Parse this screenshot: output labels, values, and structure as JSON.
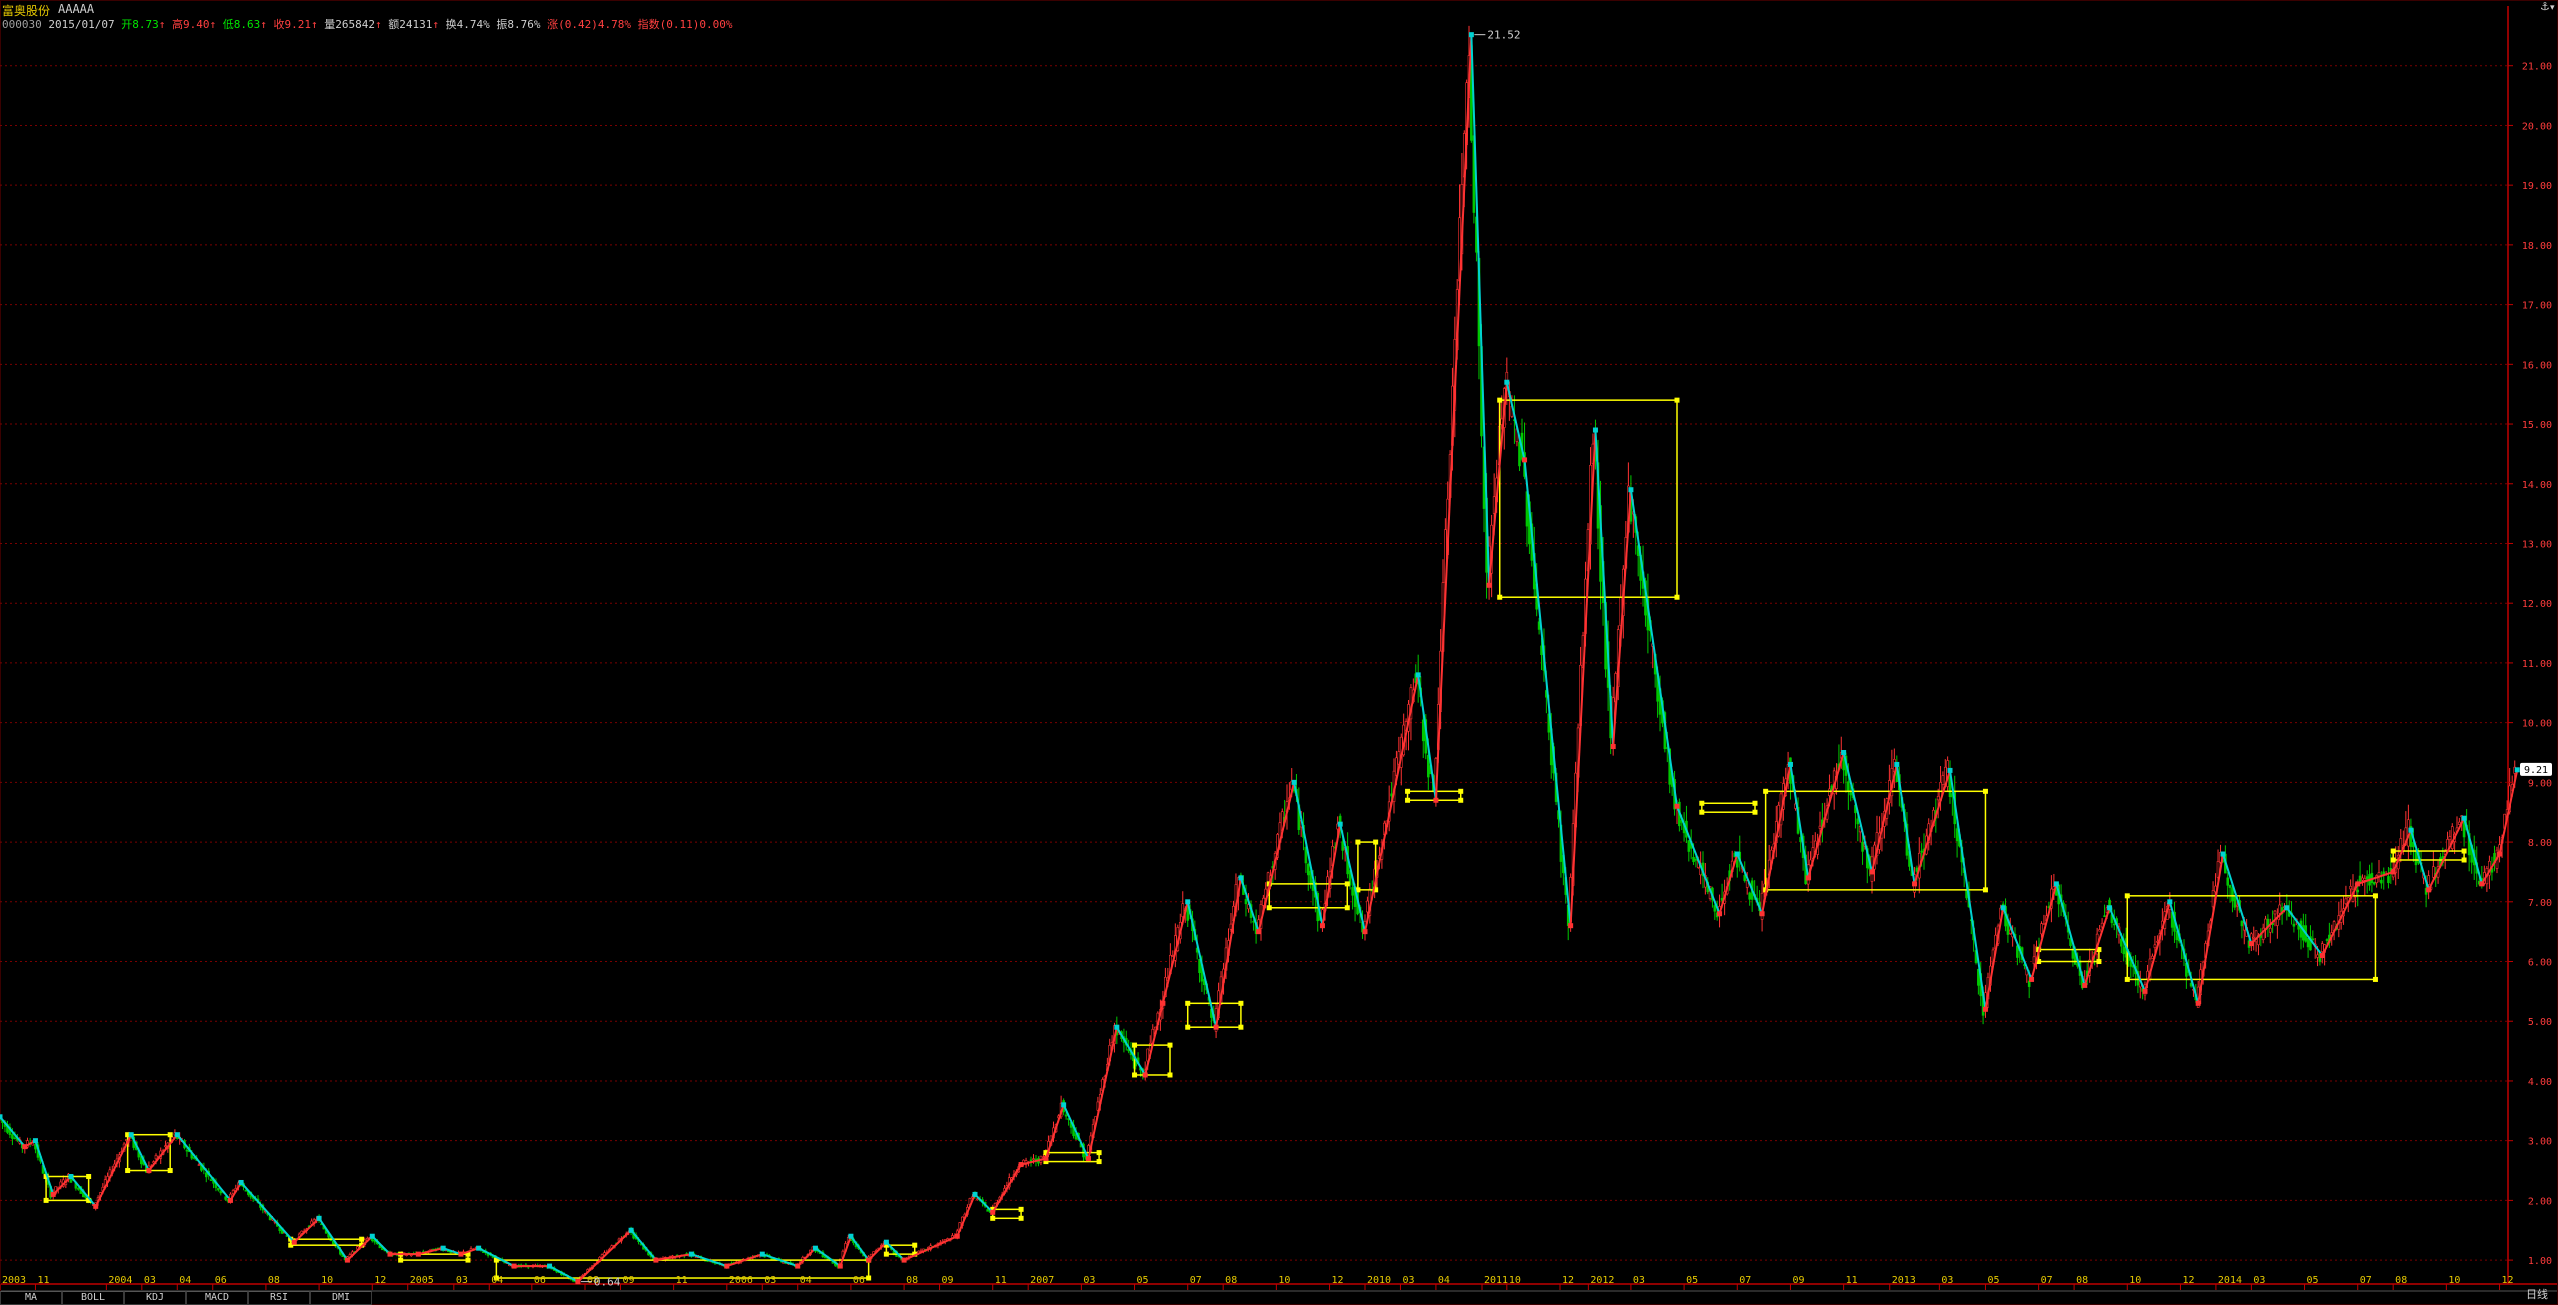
{
  "header": {
    "stock_name": "富奥股份",
    "stock_suffix": "AAAAA",
    "code": "000030",
    "date": "2015/01/07",
    "open_label": "开",
    "open_value": "8.73",
    "high_label": "高",
    "high_value": "9.40",
    "low_label": "低",
    "low_value": "8.63",
    "close_label": "收",
    "close_value": "9.21",
    "vol_label": "量",
    "vol_value": "265842",
    "amount_label": "额",
    "amount_value": "24131",
    "turnover_label": "换",
    "turnover_value": "4.74%",
    "amplitude_label": "振",
    "amplitude_value": "8.76%",
    "change_label": "涨",
    "change_value": "(0.42)4.78%",
    "index_label": "指数",
    "index_value": "(0.11)0.00%"
  },
  "tabs": [
    "MA",
    "BOLL",
    "KDJ",
    "MACD",
    "RSI",
    "DMI"
  ],
  "period_label": "日线",
  "colors": {
    "up": "#ff3232",
    "down": "#00d2d2",
    "box": "#ffff00",
    "grid": "#7a0000",
    "axis": "#c00000",
    "axis_text": "#ff3c3c",
    "date_text": "#e6c800",
    "price_tag": "#ffffff"
  },
  "chart_data": {
    "type": "line",
    "title": "富奥股份 AAAAA",
    "y_ticks": [
      "1.00",
      "2.00",
      "3.00",
      "4.00",
      "5.00",
      "6.00",
      "7.00",
      "8.00",
      "9.00",
      "10.00",
      "11.00",
      "12.00",
      "13.00",
      "14.00",
      "15.00",
      "16.00",
      "17.00",
      "18.00",
      "19.00",
      "20.00",
      "21.00"
    ],
    "ylim": [
      0.6,
      22.0
    ],
    "x_ticks": [
      {
        "x": 0.0,
        "label": "2003"
      },
      {
        "x": 1.0,
        "label": "11"
      },
      {
        "x": 3.0,
        "label": "2004"
      },
      {
        "x": 4.0,
        "label": "03"
      },
      {
        "x": 5.0,
        "label": "04"
      },
      {
        "x": 6.0,
        "label": "06"
      },
      {
        "x": 7.5,
        "label": "08"
      },
      {
        "x": 9.0,
        "label": "10"
      },
      {
        "x": 10.5,
        "label": "12"
      },
      {
        "x": 11.5,
        "label": "2005"
      },
      {
        "x": 12.8,
        "label": "03"
      },
      {
        "x": 13.8,
        "label": "04"
      },
      {
        "x": 15.0,
        "label": "06"
      },
      {
        "x": 16.5,
        "label": "08"
      },
      {
        "x": 17.5,
        "label": "09"
      },
      {
        "x": 19.0,
        "label": "11"
      },
      {
        "x": 20.5,
        "label": "2006"
      },
      {
        "x": 21.5,
        "label": "03"
      },
      {
        "x": 22.5,
        "label": "04"
      },
      {
        "x": 24.0,
        "label": "06"
      },
      {
        "x": 25.5,
        "label": "08"
      },
      {
        "x": 26.5,
        "label": "09"
      },
      {
        "x": 28.0,
        "label": "11"
      },
      {
        "x": 29.0,
        "label": "2007"
      },
      {
        "x": 30.5,
        "label": "03"
      },
      {
        "x": 32.0,
        "label": "05"
      },
      {
        "x": 33.5,
        "label": "07"
      },
      {
        "x": 34.5,
        "label": "08"
      },
      {
        "x": 36.0,
        "label": "10"
      },
      {
        "x": 37.5,
        "label": "12"
      },
      {
        "x": 38.5,
        "label": "2010"
      },
      {
        "x": 39.5,
        "label": "03"
      },
      {
        "x": 40.5,
        "label": "04"
      },
      {
        "x": 41.8,
        "label": "2011"
      },
      {
        "x": 42.5,
        "label": "10"
      },
      {
        "x": 44.0,
        "label": "12"
      },
      {
        "x": 44.8,
        "label": "2012"
      },
      {
        "x": 46.0,
        "label": "03"
      },
      {
        "x": 47.5,
        "label": "05"
      },
      {
        "x": 49.0,
        "label": "07"
      },
      {
        "x": 50.5,
        "label": "09"
      },
      {
        "x": 52.0,
        "label": "11"
      },
      {
        "x": 53.3,
        "label": "2013"
      },
      {
        "x": 54.7,
        "label": "03"
      },
      {
        "x": 56.0,
        "label": "05"
      },
      {
        "x": 57.5,
        "label": "07"
      },
      {
        "x": 58.5,
        "label": "08"
      },
      {
        "x": 60.0,
        "label": "10"
      },
      {
        "x": 61.5,
        "label": "12"
      },
      {
        "x": 62.5,
        "label": "2014"
      },
      {
        "x": 63.5,
        "label": "03"
      },
      {
        "x": 65.0,
        "label": "05"
      },
      {
        "x": 66.5,
        "label": "07"
      },
      {
        "x": 67.5,
        "label": "08"
      },
      {
        "x": 69.0,
        "label": "10"
      },
      {
        "x": 70.5,
        "label": "12"
      }
    ],
    "xlim": [
      0,
      71.5
    ],
    "pivots": [
      {
        "x": 0.0,
        "y": 3.4
      },
      {
        "x": 0.7,
        "y": 2.9
      },
      {
        "x": 1.0,
        "y": 3.0
      },
      {
        "x": 1.5,
        "y": 2.1
      },
      {
        "x": 2.0,
        "y": 2.4
      },
      {
        "x": 2.7,
        "y": 1.9
      },
      {
        "x": 3.7,
        "y": 3.1
      },
      {
        "x": 4.2,
        "y": 2.5
      },
      {
        "x": 5.0,
        "y": 3.1
      },
      {
        "x": 6.5,
        "y": 2.0
      },
      {
        "x": 6.8,
        "y": 2.3
      },
      {
        "x": 8.3,
        "y": 1.3
      },
      {
        "x": 9.0,
        "y": 1.7
      },
      {
        "x": 9.8,
        "y": 1.0
      },
      {
        "x": 10.5,
        "y": 1.4
      },
      {
        "x": 11.0,
        "y": 1.1
      },
      {
        "x": 11.8,
        "y": 1.1
      },
      {
        "x": 12.5,
        "y": 1.2
      },
      {
        "x": 13.0,
        "y": 1.1
      },
      {
        "x": 13.5,
        "y": 1.2
      },
      {
        "x": 14.5,
        "y": 0.9
      },
      {
        "x": 15.5,
        "y": 0.9
      },
      {
        "x": 16.3,
        "y": 0.64
      },
      {
        "x": 17.8,
        "y": 1.5
      },
      {
        "x": 18.5,
        "y": 1.0
      },
      {
        "x": 19.5,
        "y": 1.1
      },
      {
        "x": 20.5,
        "y": 0.9
      },
      {
        "x": 21.5,
        "y": 1.1
      },
      {
        "x": 22.5,
        "y": 0.9
      },
      {
        "x": 23.0,
        "y": 1.2
      },
      {
        "x": 23.7,
        "y": 0.9
      },
      {
        "x": 24.0,
        "y": 1.4
      },
      {
        "x": 24.5,
        "y": 1.0
      },
      {
        "x": 25.0,
        "y": 1.3
      },
      {
        "x": 25.5,
        "y": 1.0
      },
      {
        "x": 27.0,
        "y": 1.4
      },
      {
        "x": 27.5,
        "y": 2.1
      },
      {
        "x": 28.0,
        "y": 1.8
      },
      {
        "x": 28.8,
        "y": 2.6
      },
      {
        "x": 29.5,
        "y": 2.7
      },
      {
        "x": 30.0,
        "y": 3.6
      },
      {
        "x": 30.7,
        "y": 2.7
      },
      {
        "x": 31.5,
        "y": 4.9
      },
      {
        "x": 32.3,
        "y": 4.1
      },
      {
        "x": 32.8,
        "y": 5.3
      },
      {
        "x": 33.5,
        "y": 7.0
      },
      {
        "x": 34.3,
        "y": 4.9
      },
      {
        "x": 35.0,
        "y": 7.4
      },
      {
        "x": 35.5,
        "y": 6.5
      },
      {
        "x": 36.5,
        "y": 9.0
      },
      {
        "x": 37.3,
        "y": 6.6
      },
      {
        "x": 37.8,
        "y": 8.3
      },
      {
        "x": 38.5,
        "y": 6.5
      },
      {
        "x": 40.0,
        "y": 10.8
      },
      {
        "x": 40.5,
        "y": 8.7
      },
      {
        "x": 41.5,
        "y": 21.52
      },
      {
        "x": 42.0,
        "y": 12.3
      },
      {
        "x": 42.5,
        "y": 15.7
      },
      {
        "x": 43.0,
        "y": 14.4
      },
      {
        "x": 44.3,
        "y": 6.6
      },
      {
        "x": 45.0,
        "y": 14.9
      },
      {
        "x": 45.5,
        "y": 9.6
      },
      {
        "x": 46.0,
        "y": 13.9
      },
      {
        "x": 47.3,
        "y": 8.6
      },
      {
        "x": 48.5,
        "y": 6.8
      },
      {
        "x": 49.0,
        "y": 7.8
      },
      {
        "x": 49.7,
        "y": 6.8
      },
      {
        "x": 50.5,
        "y": 9.3
      },
      {
        "x": 51.0,
        "y": 7.4
      },
      {
        "x": 52.0,
        "y": 9.5
      },
      {
        "x": 52.8,
        "y": 7.5
      },
      {
        "x": 53.5,
        "y": 9.3
      },
      {
        "x": 54.0,
        "y": 7.3
      },
      {
        "x": 55.0,
        "y": 9.2
      },
      {
        "x": 56.0,
        "y": 5.2
      },
      {
        "x": 56.5,
        "y": 6.9
      },
      {
        "x": 57.3,
        "y": 5.7
      },
      {
        "x": 58.0,
        "y": 7.3
      },
      {
        "x": 58.8,
        "y": 5.6
      },
      {
        "x": 59.5,
        "y": 6.9
      },
      {
        "x": 60.5,
        "y": 5.5
      },
      {
        "x": 61.2,
        "y": 7.0
      },
      {
        "x": 62.0,
        "y": 5.3
      },
      {
        "x": 62.7,
        "y": 7.8
      },
      {
        "x": 63.5,
        "y": 6.3
      },
      {
        "x": 64.5,
        "y": 6.9
      },
      {
        "x": 65.5,
        "y": 6.1
      },
      {
        "x": 66.5,
        "y": 7.3
      },
      {
        "x": 67.5,
        "y": 7.5
      },
      {
        "x": 68.0,
        "y": 8.2
      },
      {
        "x": 68.5,
        "y": 7.2
      },
      {
        "x": 69.5,
        "y": 8.4
      },
      {
        "x": 70.0,
        "y": 7.3
      },
      {
        "x": 70.5,
        "y": 7.8
      },
      {
        "x": 71.0,
        "y": 9.21
      }
    ],
    "boxes": [
      {
        "x0": 1.3,
        "x1": 2.5,
        "y0": 2.0,
        "y1": 2.4
      },
      {
        "x0": 3.6,
        "x1": 4.8,
        "y0": 2.5,
        "y1": 3.1
      },
      {
        "x0": 8.2,
        "x1": 10.2,
        "y0": 1.25,
        "y1": 1.35
      },
      {
        "x0": 11.3,
        "x1": 13.2,
        "y0": 1.0,
        "y1": 1.1
      },
      {
        "x0": 14.0,
        "x1": 24.5,
        "y0": 0.7,
        "y1": 1.0
      },
      {
        "x0": 25.0,
        "x1": 25.8,
        "y0": 1.1,
        "y1": 1.25
      },
      {
        "x0": 28.0,
        "x1": 28.8,
        "y0": 1.7,
        "y1": 1.85
      },
      {
        "x0": 29.5,
        "x1": 31.0,
        "y0": 2.65,
        "y1": 2.8
      },
      {
        "x0": 32.0,
        "x1": 33.0,
        "y0": 4.1,
        "y1": 4.6
      },
      {
        "x0": 33.5,
        "x1": 35.0,
        "y0": 4.9,
        "y1": 5.3
      },
      {
        "x0": 35.8,
        "x1": 38.0,
        "y0": 6.9,
        "y1": 7.3
      },
      {
        "x0": 38.3,
        "x1": 38.8,
        "y0": 7.2,
        "y1": 8.0
      },
      {
        "x0": 39.7,
        "x1": 41.2,
        "y0": 8.7,
        "y1": 8.85
      },
      {
        "x0": 42.3,
        "x1": 47.3,
        "y0": 12.1,
        "y1": 15.4
      },
      {
        "x0": 48.0,
        "x1": 49.5,
        "y0": 8.5,
        "y1": 8.65
      },
      {
        "x0": 49.8,
        "x1": 56.0,
        "y0": 7.2,
        "y1": 8.85
      },
      {
        "x0": 57.5,
        "x1": 59.2,
        "y0": 6.0,
        "y1": 6.2
      },
      {
        "x0": 60.0,
        "x1": 67.0,
        "y0": 5.7,
        "y1": 7.1
      },
      {
        "x0": 67.5,
        "x1": 69.5,
        "y0": 7.7,
        "y1": 7.85
      }
    ],
    "annotations": [
      {
        "x": 41.5,
        "y": 21.52,
        "text": "21.52"
      },
      {
        "x": 16.3,
        "y": 0.64,
        "text": "0.64"
      }
    ],
    "last_price": "9.21"
  }
}
